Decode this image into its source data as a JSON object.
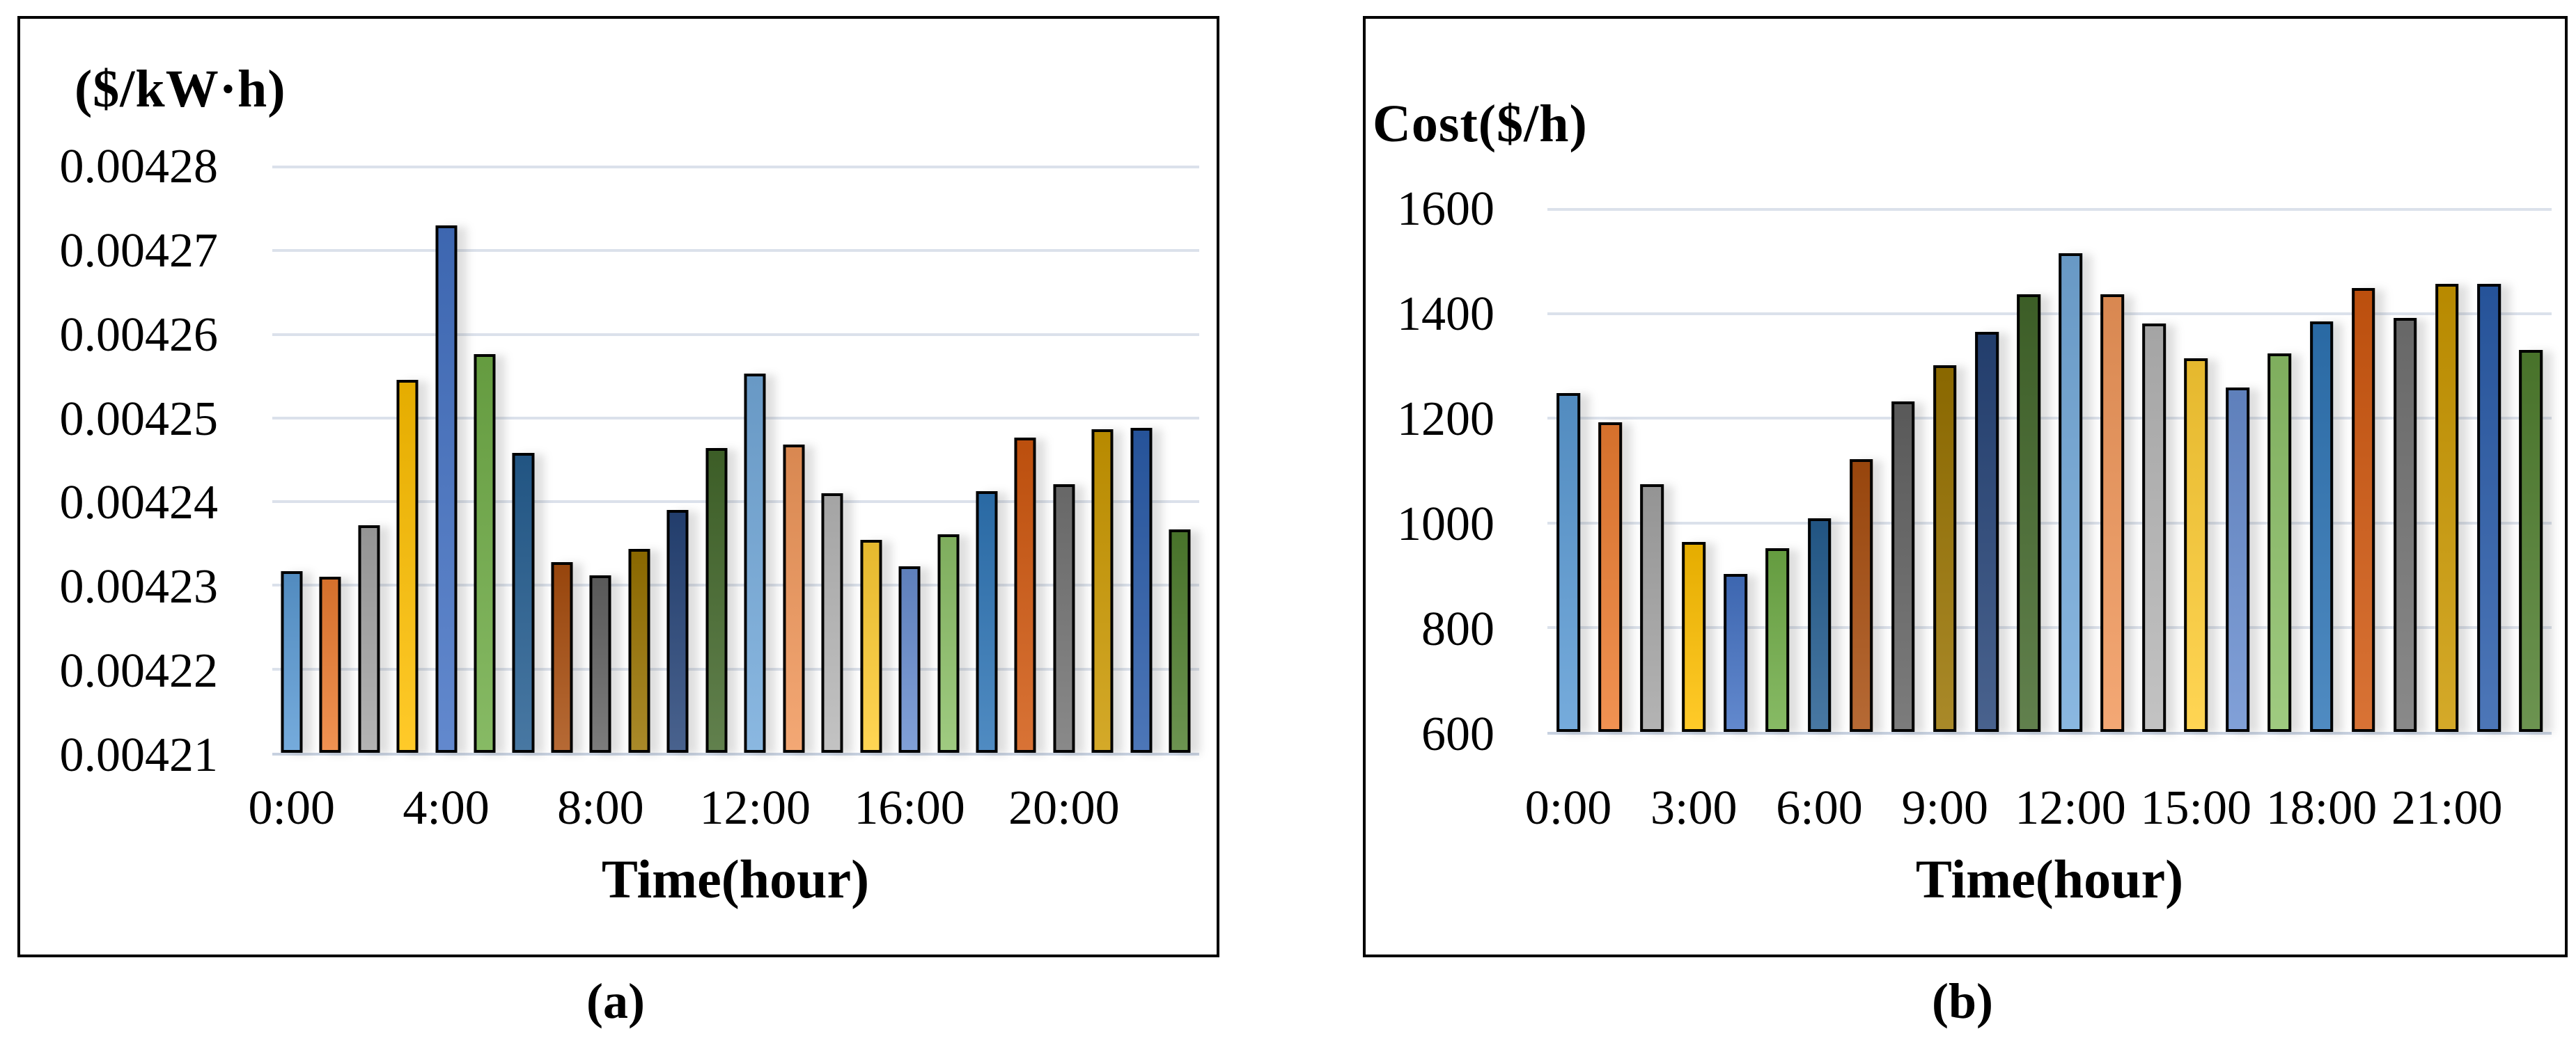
{
  "figure": {
    "caption_a": "(a)",
    "caption_b": "(b)"
  },
  "palette": [
    "#5B9BD5",
    "#ED7D31",
    "#A5A5A5",
    "#FFC000",
    "#4472C4",
    "#70AD47",
    "#255E91",
    "#A84D0E",
    "#636363",
    "#997300",
    "#264478",
    "#43682B",
    "#74AADB",
    "#F1975A",
    "#B7B7B7",
    "#FFCD33",
    "#698ED0",
    "#8DC168",
    "#2E75B6",
    "#D1580F",
    "#737373",
    "#CC9900",
    "#2A5CAA",
    "#507F2F"
  ],
  "chart_data": [
    {
      "type": "bar",
      "panel": "a",
      "title": "",
      "ylabel": "($/kW·h)",
      "xlabel": "Time(hour)",
      "ylim": [
        0.00421,
        0.00428
      ],
      "yticks": [
        "0.00421",
        "0.00422",
        "0.00423",
        "0.00424",
        "0.00425",
        "0.00426",
        "0.00427",
        "0.00428"
      ],
      "categories": [
        "0:00",
        "1:00",
        "2:00",
        "3:00",
        "4:00",
        "5:00",
        "6:00",
        "7:00",
        "8:00",
        "9:00",
        "10:00",
        "11:00",
        "12:00",
        "13:00",
        "14:00",
        "15:00",
        "16:00",
        "17:00",
        "18:00",
        "19:00",
        "20:00",
        "21:00",
        "22:00",
        "23:00"
      ],
      "xticks_shown": [
        "0:00",
        "4:00",
        "8:00",
        "12:00",
        "16:00",
        "20:00"
      ],
      "xtick_every": 4,
      "values": [
        0.0042317,
        0.004231,
        0.0042372,
        0.0042546,
        0.004273,
        0.0042576,
        0.0042458,
        0.0042328,
        0.0042312,
        0.0042344,
        0.004239,
        0.0042464,
        0.0042553,
        0.0042468,
        0.004241,
        0.0042354,
        0.0042323,
        0.0042361,
        0.0042413,
        0.0042477,
        0.0042421,
        0.0042487,
        0.0042488,
        0.0042367
      ],
      "grid": true,
      "legend": "none"
    },
    {
      "type": "bar",
      "panel": "b",
      "title": "",
      "ylabel": "Cost($/h)",
      "xlabel": "Time(hour)",
      "ylim": [
        600,
        1600
      ],
      "yticks": [
        "600",
        "800",
        "1000",
        "1200",
        "1400",
        "1600"
      ],
      "categories": [
        "0:00",
        "1:00",
        "2:00",
        "3:00",
        "4:00",
        "5:00",
        "6:00",
        "7:00",
        "8:00",
        "9:00",
        "10:00",
        "11:00",
        "12:00",
        "13:00",
        "14:00",
        "15:00",
        "16:00",
        "17:00",
        "18:00",
        "19:00",
        "20:00",
        "21:00",
        "22:00",
        "23:00"
      ],
      "xticks_shown": [
        "0:00",
        "3:00",
        "6:00",
        "9:00",
        "12:00",
        "15:00",
        "18:00",
        "21:00"
      ],
      "xtick_every": 3,
      "values": [
        1248,
        1193,
        1074,
        964,
        902,
        951,
        1009,
        1122,
        1232,
        1302,
        1366,
        1438,
        1516,
        1438,
        1381,
        1315,
        1259,
        1325,
        1385,
        1449,
        1392,
        1457,
        1458,
        1331
      ],
      "grid": true,
      "legend": "none"
    }
  ]
}
